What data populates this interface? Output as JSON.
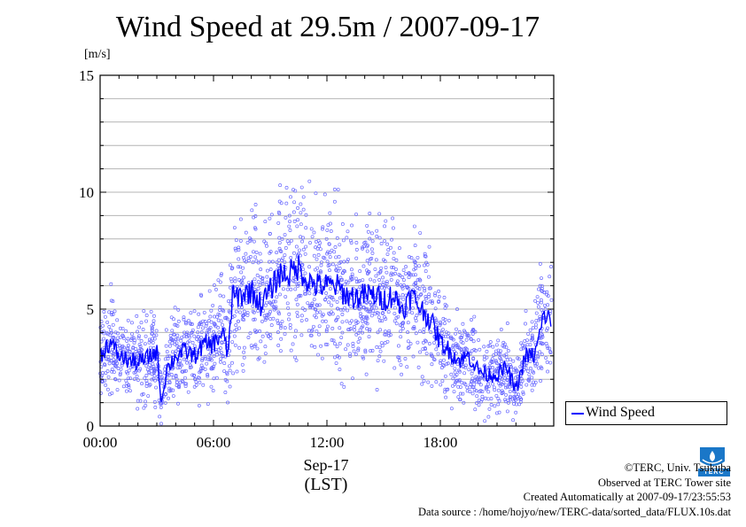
{
  "chart_data": {
    "type": "line",
    "title": "Wind Speed at 29.5m / 2007-09-17",
    "ylabel": "[m/s]",
    "xlabel_date": "Sep-17",
    "xlabel_tz": "(LST)",
    "x_unit": "hours (LST)",
    "xlim": [
      0,
      24
    ],
    "ylim": [
      0,
      15
    ],
    "x_tick_labels": [
      "00:00",
      "06:00",
      "12:00",
      "18:00"
    ],
    "x_ticks": [
      0,
      6,
      12,
      18
    ],
    "y_ticks": [
      0,
      5,
      10,
      15
    ],
    "grid": "horizontal every 1 m/s",
    "legend": {
      "position": "right-bottom",
      "entries": [
        "Wind Speed"
      ]
    },
    "series": [
      {
        "name": "Wind Speed",
        "color": "#0000ff",
        "style": "solid line (10-second data shown as scattered points around mean)",
        "x": [
          0.0,
          0.5,
          1.0,
          1.5,
          2.0,
          2.5,
          3.0,
          3.25,
          3.5,
          4.0,
          4.5,
          5.0,
          5.5,
          6.0,
          6.5,
          6.75,
          7.0,
          7.5,
          8.0,
          8.5,
          9.0,
          9.5,
          10.0,
          10.5,
          11.0,
          11.5,
          12.0,
          12.5,
          13.0,
          13.5,
          14.0,
          14.5,
          15.0,
          15.5,
          16.0,
          16.5,
          17.0,
          17.5,
          18.0,
          18.5,
          19.0,
          19.5,
          20.0,
          20.5,
          21.0,
          21.5,
          22.0,
          22.5,
          23.0,
          23.5,
          23.9
        ],
        "values": [
          3.0,
          3.6,
          3.0,
          2.8,
          2.7,
          2.9,
          3.2,
          1.0,
          2.4,
          3.0,
          3.2,
          3.0,
          3.5,
          3.5,
          4.0,
          3.0,
          5.5,
          5.6,
          5.8,
          5.2,
          5.8,
          6.5,
          6.5,
          6.8,
          6.2,
          6.0,
          6.0,
          6.0,
          5.6,
          5.5,
          5.6,
          5.6,
          5.4,
          5.6,
          5.0,
          5.6,
          5.0,
          4.5,
          3.6,
          3.2,
          2.8,
          3.0,
          2.4,
          2.2,
          2.2,
          2.5,
          1.5,
          3.0,
          3.0,
          4.8,
          4.4
        ]
      }
    ]
  },
  "legend_label": "Wind Speed",
  "credits": {
    "line1": "©TERC, Univ. Tsukuba",
    "line2": "Observed at TERC Tower site",
    "line3": "Created Automatically at 2007-09-17/23:55:53",
    "line4": "Data source : /home/hojyo/new/TERC-data/sorted_data/FLUX.10s.dat"
  },
  "logo": {
    "text": "TERC",
    "color": "#1a77c8"
  }
}
